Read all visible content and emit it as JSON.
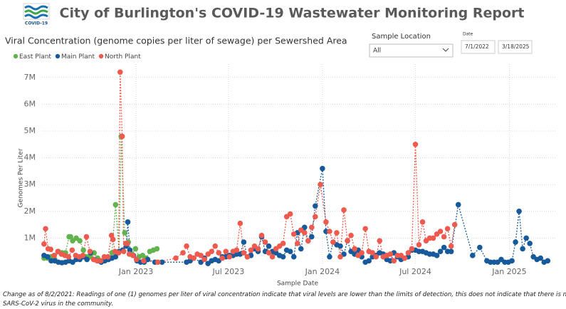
{
  "header": {
    "title": "City of Burlington's COVID-19 Wastewater Monitoring Report",
    "logo_text": "COVID-19"
  },
  "filters": {
    "location_label": "Sample Location",
    "location_value": "All",
    "date_label": "Date",
    "date_start": "7/1/2022",
    "date_end": "3/18/2025"
  },
  "footnote": "Change as of 8/2/2021: Readings of one (1) genomes per liter of viral concentration indicate that viral levels are lower than the limits of detection, this does not indicate that there is no SARS-CoV-2 virus in the community.",
  "chart_data": {
    "type": "line",
    "title": "Viral Concentration (genome copies per liter of sewage) per Sewershed Area",
    "x_label": "Sample Date",
    "y_label": "Genomes Per Liter",
    "legend": "top-left",
    "grid": true,
    "xlim": [
      "2022-07-01",
      "2025-03-18"
    ],
    "xticks": [
      {
        "value": "2023-01-01",
        "label": "Jan 2023"
      },
      {
        "value": "2023-07-01",
        "label": "Jul 2023"
      },
      {
        "value": "2024-01-01",
        "label": "Jan 2024"
      },
      {
        "value": "2024-07-01",
        "label": "Jul 2024"
      },
      {
        "value": "2025-01-01",
        "label": "Jan 2025"
      }
    ],
    "ylim": [
      0,
      7500000
    ],
    "yticks": [
      {
        "value": 1000000,
        "label": "1M"
      },
      {
        "value": 2000000,
        "label": "2M"
      },
      {
        "value": 3000000,
        "label": "3M"
      },
      {
        "value": 4000000,
        "label": "4M"
      },
      {
        "value": 5000000,
        "label": "5M"
      },
      {
        "value": 6000000,
        "label": "6M"
      },
      {
        "value": 7000000,
        "label": "7M"
      }
    ],
    "series": [
      {
        "name": "East Plant",
        "color": "#62b34e",
        "x": [
          "2022-07-05",
          "2022-07-12",
          "2022-07-19",
          "2022-07-26",
          "2022-08-02",
          "2022-08-09",
          "2022-08-16",
          "2022-08-23",
          "2022-08-26",
          "2022-08-30",
          "2022-09-06",
          "2022-09-13",
          "2022-09-20",
          "2022-09-27",
          "2022-10-04",
          "2022-10-11",
          "2022-10-18",
          "2022-10-25",
          "2022-11-01",
          "2022-11-08",
          "2022-11-15",
          "2022-11-22",
          "2022-11-29",
          "2022-12-03",
          "2022-12-10",
          "2022-12-17",
          "2022-12-24",
          "2022-12-31",
          "2023-01-07",
          "2023-01-14",
          "2023-01-21",
          "2023-01-28",
          "2023-02-04",
          "2023-02-11"
        ],
        "values": [
          250000,
          250000,
          300000,
          200000,
          500000,
          450000,
          450000,
          1050000,
          1050000,
          900000,
          1000000,
          900000,
          550000,
          300000,
          300000,
          450000,
          250000,
          150000,
          200000,
          200000,
          450000,
          2250000,
          500000,
          4800000,
          1200000,
          850000,
          400000,
          600000,
          300000,
          350000,
          250000,
          500000,
          550000,
          600000
        ]
      },
      {
        "name": "Main Plant",
        "color": "#165a9c",
        "x": [
          "2022-07-05",
          "2022-07-12",
          "2022-07-19",
          "2022-07-26",
          "2022-08-02",
          "2022-08-09",
          "2022-08-16",
          "2022-08-23",
          "2022-08-30",
          "2022-09-06",
          "2022-09-13",
          "2022-09-20",
          "2022-09-27",
          "2022-10-04",
          "2022-10-11",
          "2022-10-18",
          "2022-10-25",
          "2022-11-01",
          "2022-11-08",
          "2022-11-15",
          "2022-11-22",
          "2022-11-29",
          "2022-12-06",
          "2022-12-13",
          "2022-12-16",
          "2022-12-20",
          "2022-12-27",
          "2023-01-03",
          "2023-01-10",
          "2023-01-17",
          "2023-01-24",
          "2023-02-07",
          "2023-02-21",
          "2023-04-10",
          "2023-04-17",
          "2023-04-24",
          "2023-05-08",
          "2023-05-15",
          "2023-05-22",
          "2023-05-29",
          "2023-06-05",
          "2023-06-12",
          "2023-06-19",
          "2023-06-26",
          "2023-07-03",
          "2023-07-10",
          "2023-07-17",
          "2023-07-24",
          "2023-07-31",
          "2023-08-07",
          "2023-08-14",
          "2023-08-21",
          "2023-08-28",
          "2023-09-04",
          "2023-09-11",
          "2023-09-18",
          "2023-09-25",
          "2023-10-02",
          "2023-10-09",
          "2023-10-16",
          "2023-10-23",
          "2023-10-30",
          "2023-11-06",
          "2023-11-13",
          "2023-11-20",
          "2023-11-27",
          "2023-12-04",
          "2023-12-11",
          "2023-12-18",
          "2024-01-01",
          "2024-01-08",
          "2024-01-15",
          "2024-01-22",
          "2024-01-29",
          "2024-02-05",
          "2024-02-12",
          "2024-02-19",
          "2024-02-26",
          "2024-03-04",
          "2024-03-11",
          "2024-03-18",
          "2024-03-25",
          "2024-04-01",
          "2024-04-08",
          "2024-04-15",
          "2024-04-22",
          "2024-04-29",
          "2024-05-06",
          "2024-05-13",
          "2024-05-20",
          "2024-05-27",
          "2024-06-03",
          "2024-06-17",
          "2024-06-24",
          "2024-07-01",
          "2024-07-08",
          "2024-07-15",
          "2024-07-22",
          "2024-07-29",
          "2024-08-05",
          "2024-08-12",
          "2024-08-19",
          "2024-08-26",
          "2024-09-02",
          "2024-09-09",
          "2024-09-23",
          "2024-10-21",
          "2024-11-04",
          "2024-11-18",
          "2024-11-25",
          "2024-12-02",
          "2024-12-09",
          "2024-12-16",
          "2024-12-23",
          "2024-12-30",
          "2025-01-06",
          "2025-01-13",
          "2025-01-20",
          "2025-01-27",
          "2025-02-03",
          "2025-02-10",
          "2025-02-17",
          "2025-02-24",
          "2025-03-03",
          "2025-03-10",
          "2025-03-17"
        ],
        "values": [
          350000,
          300000,
          150000,
          150000,
          100000,
          80000,
          100000,
          150000,
          100000,
          200000,
          200000,
          300000,
          200000,
          450000,
          200000,
          150000,
          100000,
          150000,
          200000,
          250000,
          300000,
          500000,
          550000,
          700000,
          1600000,
          550000,
          350000,
          150000,
          100000,
          100000,
          200000,
          100000,
          100000,
          100000,
          150000,
          250000,
          100000,
          250000,
          50000,
          150000,
          200000,
          150000,
          300000,
          300000,
          350000,
          350000,
          400000,
          400000,
          850000,
          300000,
          350000,
          600000,
          500000,
          1050000,
          500000,
          700000,
          500000,
          450000,
          350000,
          300000,
          550000,
          500000,
          300000,
          1200000,
          600000,
          1400000,
          900000,
          1050000,
          2200000,
          3600000,
          1250000,
          300000,
          850000,
          750000,
          700000,
          400000,
          900000,
          500000,
          400000,
          550000,
          300000,
          100000,
          150000,
          300000,
          350000,
          450000,
          400000,
          200000,
          150000,
          450000,
          300000,
          200000,
          300000,
          550000,
          550000,
          500000,
          500000,
          450000,
          400000,
          400000,
          350000,
          500000,
          650000,
          500000,
          500000,
          2250000,
          350000,
          650000,
          150000,
          100000,
          100000,
          100000,
          200000,
          100000,
          100000,
          150000,
          850000,
          2000000,
          600000,
          1000000,
          800000,
          300000,
          200000,
          250000,
          100000,
          150000
        ]
      },
      {
        "name": "North Plant",
        "color": "#ee5a4e",
        "x": [
          "2022-07-05",
          "2022-07-08",
          "2022-07-13",
          "2022-07-18",
          "2022-07-25",
          "2022-08-01",
          "2022-08-08",
          "2022-08-15",
          "2022-08-22",
          "2022-08-29",
          "2022-09-05",
          "2022-09-12",
          "2022-09-19",
          "2022-09-26",
          "2022-10-03",
          "2022-10-10",
          "2022-10-17",
          "2022-10-24",
          "2022-10-31",
          "2022-11-07",
          "2022-11-14",
          "2022-11-17",
          "2022-11-21",
          "2022-11-28",
          "2022-12-01",
          "2022-12-05",
          "2022-12-08",
          "2022-12-12",
          "2022-12-15",
          "2022-12-19",
          "2022-12-26",
          "2023-01-02",
          "2023-01-16",
          "2023-02-13",
          "2023-03-20",
          "2023-04-03",
          "2023-04-10",
          "2023-04-17",
          "2023-04-24",
          "2023-05-01",
          "2023-05-08",
          "2023-05-15",
          "2023-05-22",
          "2023-05-29",
          "2023-06-05",
          "2023-06-12",
          "2023-06-19",
          "2023-06-26",
          "2023-07-03",
          "2023-07-10",
          "2023-07-17",
          "2023-07-24",
          "2023-07-31",
          "2023-08-07",
          "2023-08-14",
          "2023-08-21",
          "2023-08-28",
          "2023-09-04",
          "2023-09-11",
          "2023-09-18",
          "2023-09-25",
          "2023-10-02",
          "2023-10-09",
          "2023-10-16",
          "2023-10-23",
          "2023-10-30",
          "2023-11-06",
          "2023-11-13",
          "2023-11-20",
          "2023-11-27",
          "2023-12-04",
          "2023-12-11",
          "2023-12-18",
          "2023-12-28",
          "2024-01-08",
          "2024-01-15",
          "2024-01-22",
          "2024-01-29",
          "2024-02-05",
          "2024-02-12",
          "2024-02-19",
          "2024-02-26",
          "2024-03-04",
          "2024-03-11",
          "2024-03-18",
          "2024-03-25",
          "2024-04-01",
          "2024-04-08",
          "2024-04-15",
          "2024-04-22",
          "2024-04-29",
          "2024-05-06",
          "2024-05-13",
          "2024-05-20",
          "2024-05-27",
          "2024-06-03",
          "2024-06-10",
          "2024-06-17",
          "2024-06-24",
          "2024-07-01",
          "2024-07-08",
          "2024-07-15",
          "2024-07-22",
          "2024-07-29",
          "2024-08-05",
          "2024-08-12",
          "2024-08-19",
          "2024-08-26",
          "2024-09-02",
          "2024-09-09",
          "2024-09-16"
        ],
        "values": [
          780000,
          1350000,
          600000,
          580000,
          350000,
          500000,
          400000,
          350000,
          300000,
          550000,
          350000,
          300000,
          350000,
          1050000,
          500000,
          200000,
          150000,
          150000,
          300000,
          300000,
          1100000,
          950000,
          500000,
          450000,
          7200000,
          4800000,
          500000,
          800000,
          800000,
          400000,
          350000,
          200000,
          150000,
          100000,
          250000,
          450000,
          700000,
          300000,
          250000,
          400000,
          350000,
          200000,
          400000,
          500000,
          700000,
          450000,
          250000,
          500000,
          300000,
          500000,
          550000,
          1550000,
          450000,
          300000,
          550000,
          700000,
          600000,
          1100000,
          850000,
          450000,
          300000,
          600000,
          700000,
          800000,
          1800000,
          1900000,
          1150000,
          800000,
          1300000,
          1200000,
          900000,
          1400000,
          1800000,
          3000000,
          1600000,
          1250000,
          850000,
          1200000,
          300000,
          2050000,
          900000,
          1100000,
          600000,
          350000,
          450000,
          1350000,
          500000,
          450000,
          300000,
          900000,
          300000,
          350000,
          400000,
          150000,
          350000,
          350000,
          250000,
          450000,
          600000,
          4500000,
          750000,
          1600000,
          900000,
          1000000,
          1000000,
          1150000,
          1250000,
          1050000,
          1350000,
          700000,
          1500000
        ]
      }
    ]
  }
}
